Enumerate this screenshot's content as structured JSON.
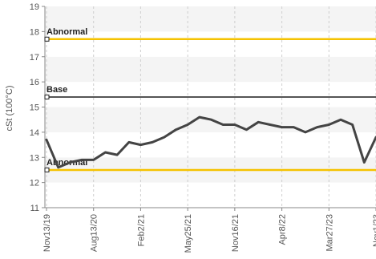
{
  "chart_data": {
    "type": "line",
    "xlabel": "",
    "ylabel": "cSt (100°C)",
    "ylim": [
      11,
      19
    ],
    "y_ticks": [
      "11",
      "12",
      "13",
      "14",
      "15",
      "16",
      "17",
      "18",
      "19"
    ],
    "grid": "horizontal bands and dashed vertical gridlines",
    "x_tick_labels": [
      "Nov13/19",
      "Aug13/20",
      "Feb2/21",
      "May25/21",
      "Nov16/21",
      "Apr8/22",
      "Mar27/23",
      "Nov1/23"
    ],
    "reference_lines": [
      {
        "label": "Abnormal",
        "value": 17.7,
        "color": "#f5c200"
      },
      {
        "label": "Base",
        "value": 15.4,
        "color": "#555555"
      },
      {
        "label": "Abnormal",
        "value": 12.5,
        "color": "#f5c200"
      }
    ],
    "series": [
      {
        "color": "#444444",
        "values": [
          13.7,
          12.6,
          12.8,
          12.9,
          12.9,
          13.2,
          13.1,
          13.6,
          13.5,
          13.6,
          13.8,
          14.1,
          14.3,
          14.6,
          14.5,
          14.3,
          14.3,
          14.1,
          14.4,
          14.3,
          14.2,
          14.2,
          14.0,
          14.2,
          14.3,
          14.5,
          14.3,
          12.8,
          13.8
        ]
      }
    ]
  }
}
